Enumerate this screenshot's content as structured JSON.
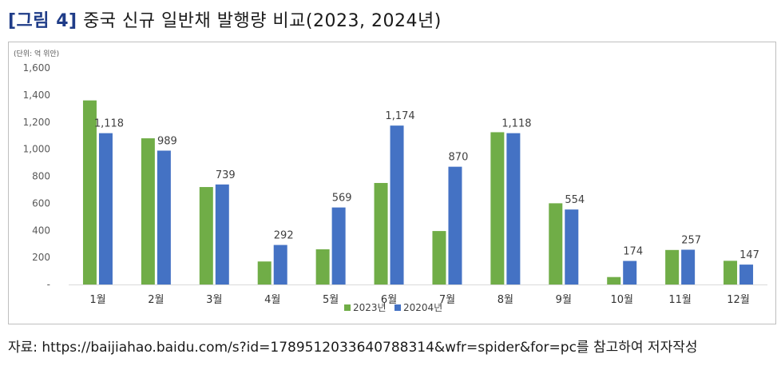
{
  "header": {
    "tag": "[그림 4]",
    "title": "중국 신규 일반채 발행량 비교(2023, 2024년)"
  },
  "source": "자료: https://baijiahao.baidu.com/s?id=1789512033640788314&wfr=spider&for=pc를 참고하여 저자작성",
  "chart_data": {
    "type": "bar",
    "unit_label": "(단위: 억 위안)",
    "categories": [
      "1월",
      "2월",
      "3월",
      "4월",
      "5월",
      "6월",
      "7월",
      "8월",
      "9월",
      "10월",
      "11월",
      "12월"
    ],
    "series": [
      {
        "name": "2023년",
        "color": "#70ad47",
        "values": [
          1360,
          1080,
          720,
          170,
          260,
          750,
          395,
          1125,
          600,
          55,
          255,
          175
        ]
      },
      {
        "name": "20204년",
        "color": "#4472c4",
        "values": [
          1118,
          989,
          739,
          292,
          569,
          1174,
          870,
          1118,
          554,
          174,
          257,
          147
        ]
      }
    ],
    "data_labels": [
      "1,118",
      "989",
      "739",
      "292",
      "569",
      "1,174",
      "870",
      "1,118",
      "554",
      "174",
      "257",
      "147"
    ],
    "yticks": [
      "-",
      "200",
      "400",
      "600",
      "800",
      "1,000",
      "1,200",
      "1,400",
      "1,600"
    ],
    "ylim": [
      0,
      1600
    ],
    "legend_position": "bottom",
    "grid": false
  }
}
